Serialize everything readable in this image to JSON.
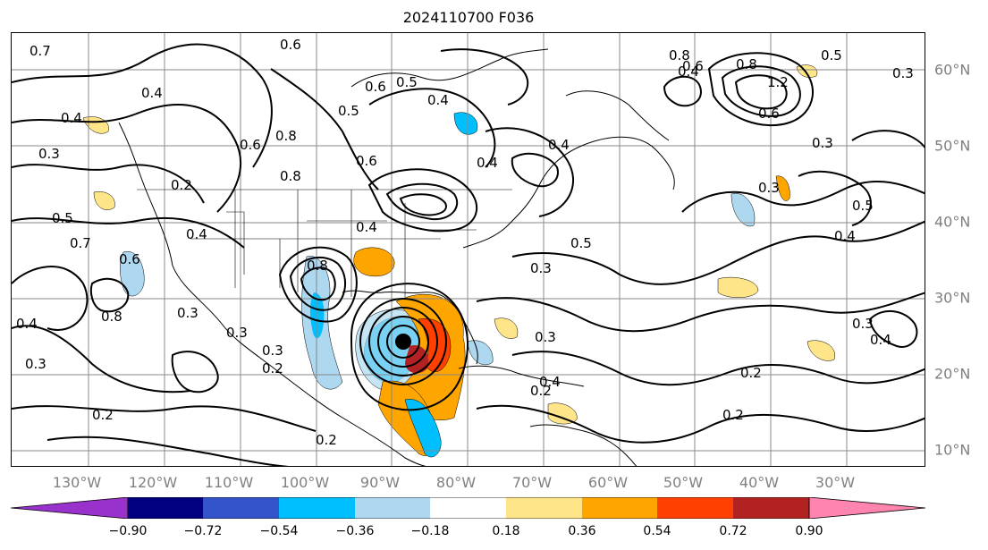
{
  "title": "2024110700 F036",
  "map": {
    "lon_labels": [
      "130°W",
      "120°W",
      "110°W",
      "100°W",
      "90°W",
      "80°W",
      "70°W",
      "60°W",
      "50°W",
      "40°W",
      "30°W"
    ],
    "lat_labels": [
      "60°N",
      "50°N",
      "40°N",
      "30°N",
      "20°N",
      "10°N"
    ],
    "contour_labels": [
      "0.7",
      "0.6",
      "0.4",
      "0.4",
      "0.3",
      "0.5",
      "0.7",
      "0.6",
      "0.8",
      "0.4",
      "0.3",
      "0.2",
      "0.2",
      "0.4",
      "0.3",
      "0.3",
      "0.2",
      "0.8",
      "0.8",
      "0.3",
      "0.2",
      "0.3",
      "0.4",
      "0.5",
      "0.6",
      "0.5",
      "0.4",
      "0.5",
      "0.3",
      "0.4",
      "0.4",
      "0.3",
      "0.2",
      "0.4",
      "0.3",
      "0.2",
      "0.8",
      "0.5",
      "0.6",
      "0.8",
      "1.2",
      "0.6",
      "0.3",
      "0.5",
      "0.4",
      "0.6",
      "0.3",
      "0.4",
      "0.2",
      "0.4",
      "0.6",
      "0.8"
    ]
  },
  "colorbar": {
    "ticks": [
      "−0.90",
      "−0.72",
      "−0.54",
      "−0.36",
      "−0.18",
      "0.18",
      "0.36",
      "0.54",
      "0.72",
      "0.90"
    ],
    "colors": [
      "#9932CC",
      "#000080",
      "#3454CC",
      "#00BFFF",
      "#ADD8F0",
      "#FFFFFF",
      "#FFE58A",
      "#FFA500",
      "#FF4000",
      "#B22222",
      "#FF85B0"
    ]
  }
}
